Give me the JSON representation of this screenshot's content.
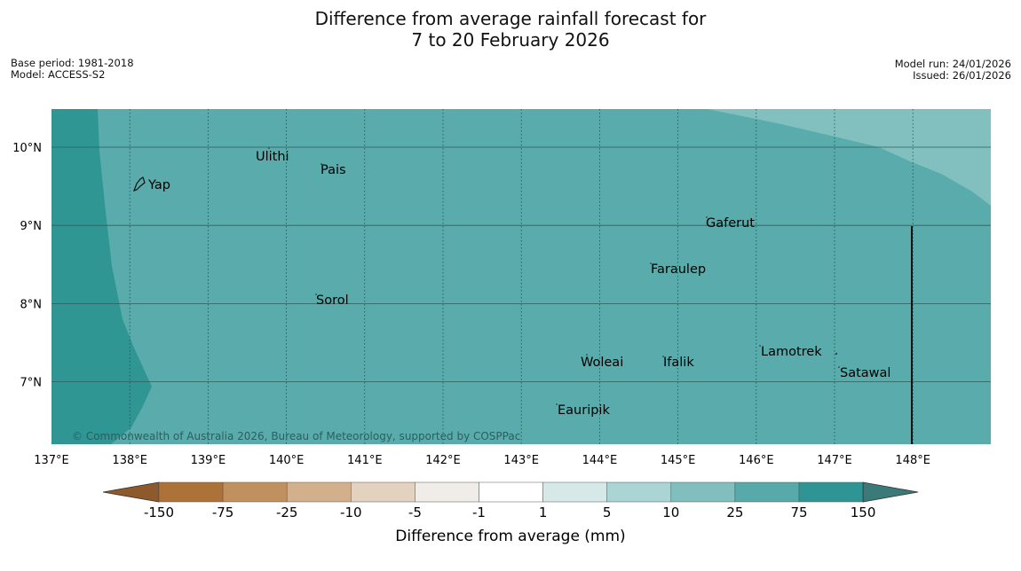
{
  "header": {
    "title_line1": "Difference from average rainfall forecast for",
    "title_line2": "7 to 20 February 2026",
    "base_period": "Base period: 1981-2018",
    "model": "Model: ACCESS-S2",
    "model_run": "Model run: 24/01/2026",
    "issued": "Issued: 26/01/2026"
  },
  "map": {
    "lon_ticks": [
      "137°E",
      "138°E",
      "139°E",
      "140°E",
      "141°E",
      "142°E",
      "143°E",
      "144°E",
      "145°E",
      "146°E",
      "147°E",
      "148°E"
    ],
    "lat_ticks": [
      "10°N",
      "9°N",
      "8°N",
      "7°N"
    ],
    "places": [
      "Ulithi",
      "Pais",
      "Yap",
      "Gaferut",
      "Faraulep",
      "Sorol",
      "Lamotrek",
      "Woleai",
      "Ifalik",
      "Satawal",
      "Eauripik"
    ],
    "copyright": "© Commonwealth of Australia 2026, Bureau of Meteorology, supported by COSPPac"
  },
  "legend": {
    "ticks": [
      "-150",
      "-75",
      "-25",
      "-10",
      "-5",
      "-1",
      "1",
      "5",
      "10",
      "25",
      "75",
      "150"
    ],
    "colors": [
      "#ad7238",
      "#c0915f",
      "#d3b08c",
      "#e3d2c0",
      "#f0ede8",
      "#ffffff",
      "#d6e9e8",
      "#aad5d4",
      "#80bfbe",
      "#58a9a9",
      "#2e9594"
    ],
    "under_color": "#8e5a2b",
    "over_color": "#3a7a78",
    "label": "Difference from average (mm)"
  },
  "colors": {
    "ocean_25_75": "#5aabab",
    "over_75": "#2f9694",
    "band_10_25": "#82c0bf"
  }
}
